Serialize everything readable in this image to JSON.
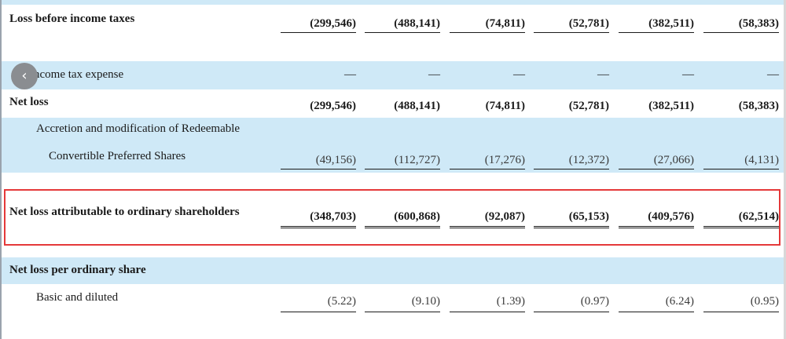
{
  "rows": {
    "loss_before_taxes": {
      "label": "Loss before income taxes",
      "values": [
        "(299,546)",
        "(488,141)",
        "(74,811)",
        "(52,781)",
        "(382,511)",
        "(58,383)"
      ]
    },
    "income_tax": {
      "label": "Income tax expense",
      "values": [
        "—",
        "—",
        "—",
        "—",
        "—",
        "—"
      ]
    },
    "net_loss": {
      "label": "Net loss",
      "values": [
        "(299,546)",
        "(488,141)",
        "(74,811)",
        "(52,781)",
        "(382,511)",
        "(58,383)"
      ]
    },
    "accretion": {
      "label_line1": "Accretion and modification of Redeemable",
      "label_line2": "Convertible Preferred Shares",
      "values": [
        "(49,156)",
        "(112,727)",
        "(17,276)",
        "(12,372)",
        "(27,066)",
        "(4,131)"
      ]
    },
    "net_loss_ordinary": {
      "label": "Net loss attributable to ordinary shareholders",
      "values": [
        "(348,703)",
        "(600,868)",
        "(92,087)",
        "(65,153)",
        "(409,576)",
        "(62,514)"
      ]
    },
    "per_share_header": {
      "label": "Net loss per ordinary share"
    },
    "basic_diluted": {
      "label": "Basic and diluted",
      "values": [
        "(5.22)",
        "(9.10)",
        "(1.39)",
        "(0.97)",
        "(6.24)",
        "(0.95)"
      ]
    }
  },
  "nav": {
    "prev_icon": "‹"
  },
  "colors": {
    "band": "#cfe9f7",
    "highlight_border": "#e5393a"
  }
}
